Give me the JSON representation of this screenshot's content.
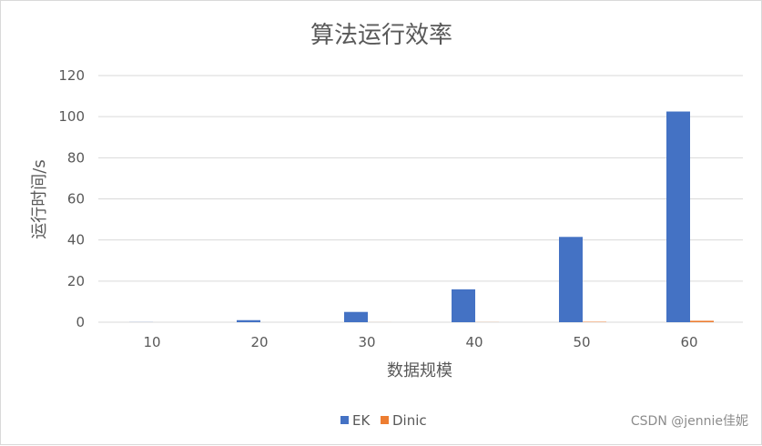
{
  "chart_data": {
    "type": "bar",
    "title": "算法运行效率",
    "xlabel": "数据规模",
    "ylabel": "运行时间/s",
    "categories": [
      "10",
      "20",
      "30",
      "40",
      "50",
      "60"
    ],
    "series": [
      {
        "name": "EK",
        "color": "#4472c4",
        "values": [
          0.05,
          1,
          5,
          16,
          41.5,
          102.5
        ]
      },
      {
        "name": "Dinic",
        "color": "#ed7d31",
        "values": [
          0,
          0,
          0.02,
          0.05,
          0.2,
          0.7
        ]
      }
    ],
    "ylim": [
      0,
      120
    ],
    "yticks": [
      "0",
      "20",
      "40",
      "60",
      "80",
      "100",
      "120"
    ],
    "grid": true,
    "legend": "bottom-center"
  },
  "watermark": "CSDN @jennie佳妮"
}
